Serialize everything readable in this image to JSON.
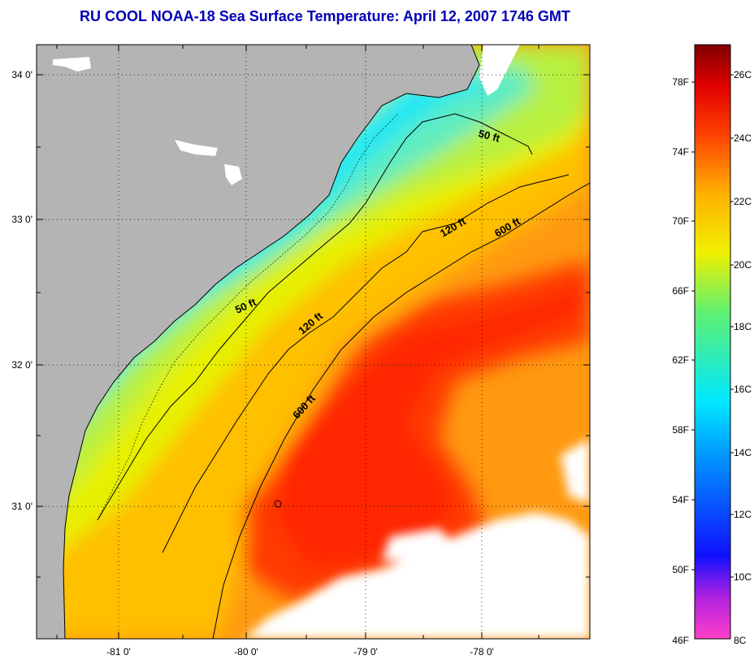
{
  "title": "RU COOL  NOAA-18  Sea Surface Temperature:  April 12, 2007 1746 GMT",
  "lat_ticks": [
    "34 0'",
    "33 0'",
    "32 0'",
    "31 0'"
  ],
  "lon_ticks": [
    "-81 0'",
    "-80 0'",
    "-79 0'",
    "-78 0'"
  ],
  "contours": {
    "shallow": "50 ft",
    "mid": "120 ft",
    "deep": "600 ft"
  },
  "colorbar": {
    "fahrenheit": [
      "78F",
      "74F",
      "70F",
      "66F",
      "62F",
      "58F",
      "54F",
      "50F",
      "46F"
    ],
    "celsius": [
      "26C",
      "24C",
      "22C",
      "20C",
      "18C",
      "16C",
      "14C",
      "12C",
      "10C",
      "8C"
    ]
  },
  "colors": {
    "land": "#b4b4b4",
    "cloud": "#ffffff",
    "title": "#0000b4"
  }
}
